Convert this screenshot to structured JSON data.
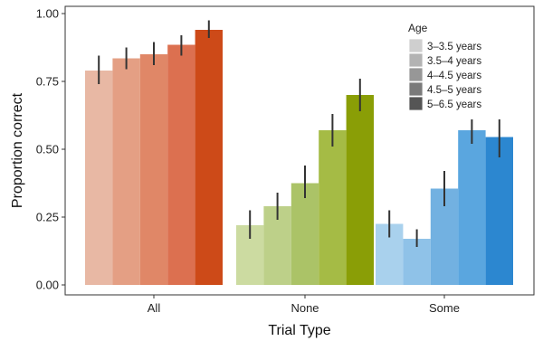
{
  "chart_data": {
    "type": "bar",
    "xlabel": "Trial Type",
    "ylabel": "Proportion correct",
    "ylim": [
      0,
      1.0
    ],
    "yticks": [
      "0.00",
      "0.25",
      "0.50",
      "0.75",
      "1.00"
    ],
    "categories": [
      "All",
      "None",
      "Some"
    ],
    "grid": false,
    "legend": {
      "title": "Age",
      "position": "top-right",
      "entries": [
        {
          "label": "3–3.5 years",
          "color": "#cfcfcf"
        },
        {
          "label": "3.5–4 years",
          "color": "#b3b3b3"
        },
        {
          "label": "4–4.5 years",
          "color": "#979797"
        },
        {
          "label": "4.5–5 years",
          "color": "#7a7a7a"
        },
        {
          "label": "5–6.5 years",
          "color": "#555555"
        }
      ]
    },
    "series": [
      {
        "name": "3–3.5 years",
        "values": [
          0.79,
          0.22,
          0.225
        ],
        "err_low": [
          0.74,
          0.17,
          0.175
        ],
        "err_high": [
          0.845,
          0.275,
          0.275
        ]
      },
      {
        "name": "3.5–4 years",
        "values": [
          0.835,
          0.29,
          0.17
        ],
        "err_low": [
          0.795,
          0.24,
          0.14
        ],
        "err_high": [
          0.875,
          0.34,
          0.205
        ]
      },
      {
        "name": "4–4.5 years",
        "values": [
          0.85,
          0.375,
          0.355
        ],
        "err_low": [
          0.81,
          0.32,
          0.29
        ],
        "err_high": [
          0.895,
          0.44,
          0.42
        ]
      },
      {
        "name": "4.5–5 years",
        "values": [
          0.885,
          0.57,
          0.57
        ],
        "err_low": [
          0.845,
          0.51,
          0.52
        ],
        "err_high": [
          0.92,
          0.63,
          0.61
        ]
      },
      {
        "name": "5–6.5 years",
        "values": [
          0.94,
          0.7,
          0.545
        ],
        "err_low": [
          0.91,
          0.64,
          0.47
        ],
        "err_high": [
          0.975,
          0.76,
          0.61
        ]
      }
    ],
    "colors": {
      "All": [
        "#e8b8a4",
        "#e49f84",
        "#e08767",
        "#dc7050",
        "#cd4a18"
      ],
      "None": [
        "#ccdba1",
        "#bdd089",
        "#abc367",
        "#a5bb45",
        "#8a9e06"
      ],
      "Some": [
        "#a9d1ed",
        "#8fc2e8",
        "#72b1e1",
        "#5aa6df",
        "#2c87d0"
      ]
    },
    "error_bar_color": "#333333"
  }
}
